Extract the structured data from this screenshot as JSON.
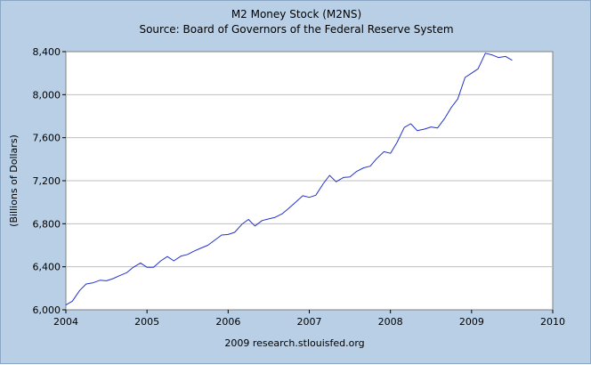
{
  "chart_data": {
    "type": "line",
    "title": "M2 Money Stock (M2NS)",
    "subtitle": "Source: Board of Governors of the Federal Reserve System",
    "ylabel": "(Billions of Dollars)",
    "xlabel": "",
    "footer": "2009 research.stlouisfed.org",
    "ylim": [
      6000,
      8400
    ],
    "xlim": [
      2004.0,
      2010.0
    ],
    "y_ticks": [
      "6,000",
      "6,400",
      "6,800",
      "7,200",
      "7,600",
      "8,000",
      "8,400"
    ],
    "y_tick_values": [
      6000,
      6400,
      6800,
      7200,
      7600,
      8000,
      8400
    ],
    "x_ticks": [
      "2004",
      "2005",
      "2006",
      "2007",
      "2008",
      "2009",
      "2010"
    ],
    "x_tick_values": [
      2004,
      2005,
      2006,
      2007,
      2008,
      2009,
      2010
    ],
    "grid": true,
    "colors": {
      "line": "#2233cc",
      "plot_bg": "#ffffff",
      "frame_bg": "#b8cfe6",
      "grid": "#bfbfbf"
    },
    "series": [
      {
        "x": [
          2004.0,
          2004.08,
          2004.17,
          2004.25,
          2004.33,
          2004.42,
          2004.5,
          2004.58,
          2004.67,
          2004.75,
          2004.83,
          2004.92,
          2005.0,
          2005.08,
          2005.17,
          2005.25,
          2005.33,
          2005.42,
          2005.5,
          2005.58,
          2005.67,
          2005.75,
          2005.83,
          2005.92,
          2006.0,
          2006.08,
          2006.17,
          2006.25,
          2006.33,
          2006.42,
          2006.5,
          2006.58,
          2006.67,
          2006.75,
          2006.83,
          2006.92,
          2007.0,
          2007.08,
          2007.17,
          2007.25,
          2007.33,
          2007.42,
          2007.5,
          2007.58,
          2007.67,
          2007.75,
          2007.83,
          2007.92,
          2008.0,
          2008.08,
          2008.17,
          2008.25,
          2008.33,
          2008.42,
          2008.5,
          2008.58,
          2008.67,
          2008.75,
          2008.83,
          2008.92,
          2009.0,
          2009.08,
          2009.17,
          2009.25,
          2009.33,
          2009.42,
          2009.5
        ],
        "values": [
          6045,
          6080,
          6180,
          6240,
          6250,
          6275,
          6270,
          6290,
          6320,
          6345,
          6395,
          6435,
          6395,
          6395,
          6455,
          6495,
          6455,
          6500,
          6515,
          6545,
          6575,
          6600,
          6645,
          6695,
          6700,
          6720,
          6795,
          6840,
          6780,
          6830,
          6845,
          6860,
          6895,
          6945,
          7000,
          7060,
          7045,
          7065,
          7170,
          7250,
          7190,
          7230,
          7235,
          7285,
          7320,
          7335,
          7405,
          7470,
          7455,
          7555,
          7695,
          7730,
          7665,
          7680,
          7700,
          7690,
          7780,
          7880,
          7960,
          8160,
          8200,
          8240,
          8385,
          8370,
          8345,
          8355,
          8320
        ]
      }
    ]
  }
}
